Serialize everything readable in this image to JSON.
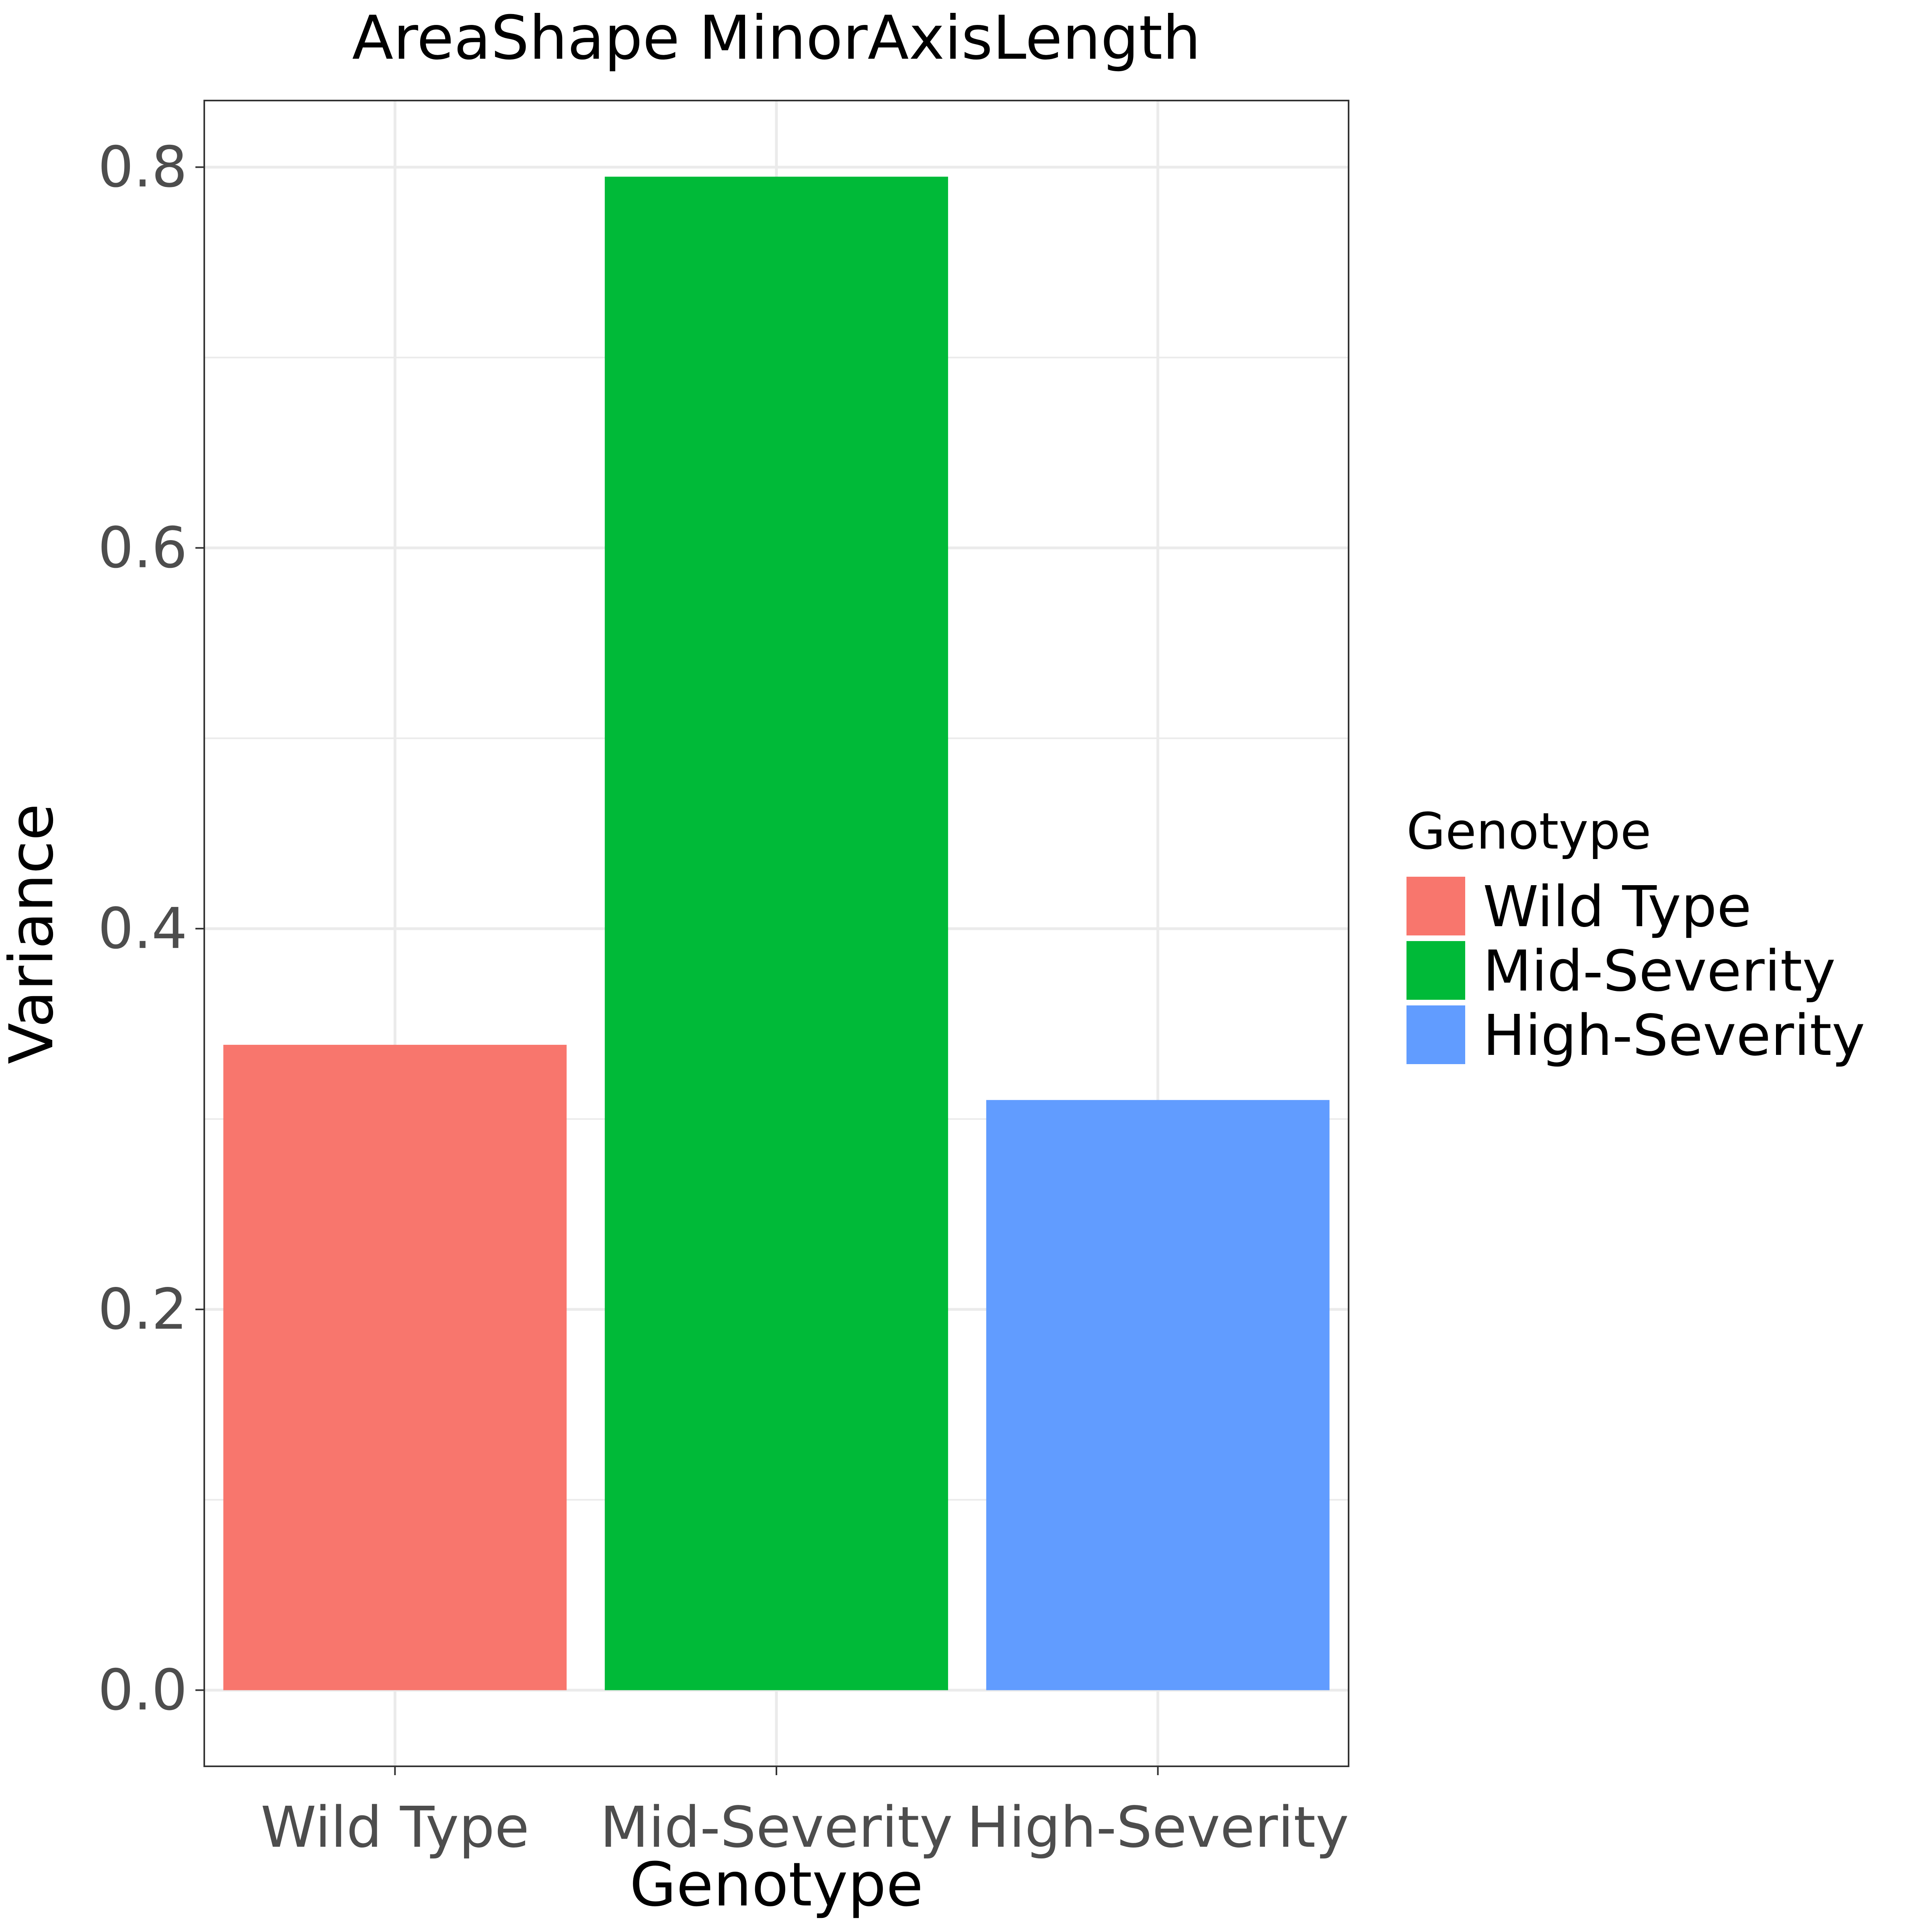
{
  "chart_data": {
    "type": "bar",
    "title": "AreaShape MinorAxisLength",
    "xlabel": "Genotype",
    "ylabel": "Variance",
    "categories": [
      "Wild Type",
      "Mid-Severity",
      "High-Severity"
    ],
    "values": [
      0.339,
      0.795,
      0.31
    ],
    "colors": [
      "#F8766D",
      "#00BA38",
      "#619CFF"
    ],
    "ylim": [
      -0.04,
      0.835
    ],
    "yticks": [
      0.0,
      0.2,
      0.4,
      0.6,
      0.8
    ],
    "ytick_labels": [
      "0.0",
      "0.2",
      "0.4",
      "0.6",
      "0.8"
    ],
    "grid": true,
    "legend": {
      "title": "Genotype",
      "placement": "right",
      "entries": [
        "Wild Type",
        "Mid-Severity",
        "High-Severity"
      ]
    }
  }
}
